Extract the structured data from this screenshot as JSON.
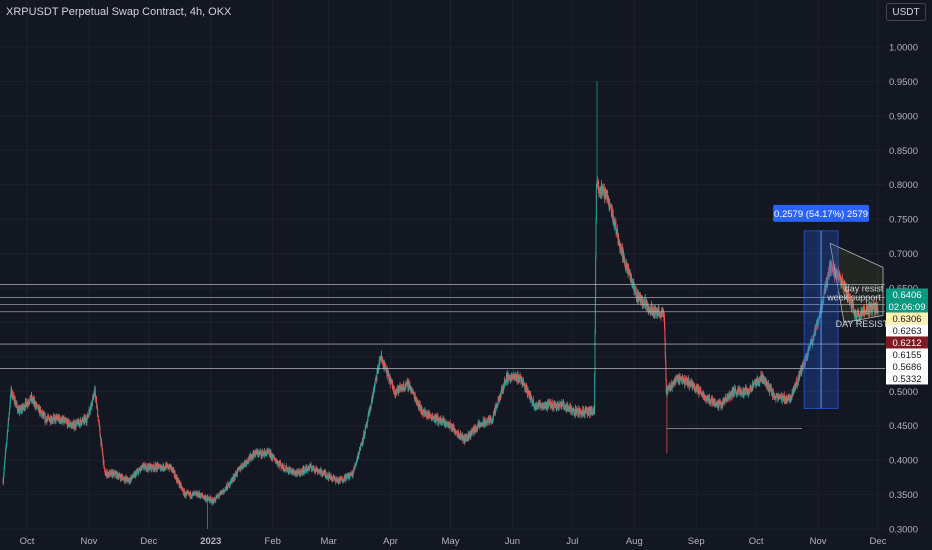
{
  "header": {
    "title": "XRPUSDT Perpetual Swap Contract, 4h, OKX",
    "currency_label": "USDT"
  },
  "colors": {
    "background": "#131722",
    "up": "#26a69a",
    "down": "#ef5350",
    "grid": "#1e222d",
    "axis_text": "#b2b5be",
    "measure_blue": "#2962ff"
  },
  "chart_data": {
    "type": "candlestick",
    "x_tick_labels": [
      "Oct",
      "Nov",
      "Dec",
      "2023",
      "Feb",
      "Mar",
      "Apr",
      "May",
      "Jun",
      "Jul",
      "Aug",
      "Sep",
      "Oct",
      "Nov",
      "Dec"
    ],
    "y_ticks": [
      1.0,
      0.95,
      0.9,
      0.85,
      0.8,
      0.75,
      0.7,
      0.65,
      0.6,
      0.55,
      0.5,
      0.45,
      0.4,
      0.35,
      0.3
    ],
    "y_tick_labels": [
      "1.0000",
      "0.9500",
      "0.9000",
      "0.8500",
      "0.8000",
      "0.7500",
      "0.7000",
      "0.6500",
      "0.6000",
      "0.5500",
      "0.5000",
      "0.4500",
      "0.4000",
      "0.3500",
      "0.3000"
    ],
    "ylim": [
      0.3,
      1.05
    ],
    "price_path": [
      [
        "2022-09-19",
        0.37
      ],
      [
        "2022-09-23",
        0.5
      ],
      [
        "2022-09-27",
        0.47
      ],
      [
        "2022-10-03",
        0.49
      ],
      [
        "2022-10-10",
        0.46
      ],
      [
        "2022-10-17",
        0.46
      ],
      [
        "2022-10-24",
        0.45
      ],
      [
        "2022-10-31",
        0.46
      ],
      [
        "2022-11-04",
        0.5
      ],
      [
        "2022-11-09",
        0.38
      ],
      [
        "2022-11-14",
        0.38
      ],
      [
        "2022-11-21",
        0.37
      ],
      [
        "2022-11-28",
        0.39
      ],
      [
        "2022-12-05",
        0.39
      ],
      [
        "2022-12-12",
        0.39
      ],
      [
        "2022-12-19",
        0.35
      ],
      [
        "2022-12-26",
        0.35
      ],
      [
        "2023-01-02",
        0.34
      ],
      [
        "2023-01-09",
        0.36
      ],
      [
        "2023-01-16",
        0.39
      ],
      [
        "2023-01-23",
        0.41
      ],
      [
        "2023-01-30",
        0.41
      ],
      [
        "2023-02-06",
        0.39
      ],
      [
        "2023-02-13",
        0.38
      ],
      [
        "2023-02-20",
        0.39
      ],
      [
        "2023-02-27",
        0.38
      ],
      [
        "2023-03-06",
        0.37
      ],
      [
        "2023-03-13",
        0.38
      ],
      [
        "2023-03-20",
        0.45
      ],
      [
        "2023-03-27",
        0.55
      ],
      [
        "2023-04-03",
        0.5
      ],
      [
        "2023-04-10",
        0.51
      ],
      [
        "2023-04-17",
        0.47
      ],
      [
        "2023-04-24",
        0.46
      ],
      [
        "2023-05-01",
        0.45
      ],
      [
        "2023-05-08",
        0.43
      ],
      [
        "2023-05-15",
        0.45
      ],
      [
        "2023-05-22",
        0.46
      ],
      [
        "2023-05-29",
        0.52
      ],
      [
        "2023-06-05",
        0.52
      ],
      [
        "2023-06-12",
        0.48
      ],
      [
        "2023-06-19",
        0.48
      ],
      [
        "2023-06-26",
        0.48
      ],
      [
        "2023-07-03",
        0.47
      ],
      [
        "2023-07-12",
        0.47
      ],
      [
        "2023-07-13",
        0.8
      ],
      [
        "2023-07-19",
        0.78
      ],
      [
        "2023-07-26",
        0.7
      ],
      [
        "2023-08-02",
        0.64
      ],
      [
        "2023-08-09",
        0.62
      ],
      [
        "2023-08-16",
        0.61
      ],
      [
        "2023-08-17",
        0.5
      ],
      [
        "2023-08-23",
        0.52
      ],
      [
        "2023-08-30",
        0.51
      ],
      [
        "2023-09-06",
        0.49
      ],
      [
        "2023-09-13",
        0.48
      ],
      [
        "2023-09-20",
        0.5
      ],
      [
        "2023-09-27",
        0.5
      ],
      [
        "2023-10-04",
        0.52
      ],
      [
        "2023-10-11",
        0.49
      ],
      [
        "2023-10-18",
        0.49
      ],
      [
        "2023-10-25",
        0.54
      ],
      [
        "2023-11-01",
        0.6
      ],
      [
        "2023-11-07",
        0.68
      ],
      [
        "2023-11-13",
        0.66
      ],
      [
        "2023-11-20",
        0.61
      ],
      [
        "2023-11-27",
        0.62
      ],
      [
        "2023-12-01",
        0.62
      ]
    ],
    "wick_extremes": [
      {
        "date": "2023-07-13",
        "high": 0.95
      },
      {
        "date": "2023-08-17",
        "low": 0.41
      },
      {
        "date": "2022-12-30",
        "low": 0.3
      }
    ],
    "horizontal_levels": [
      0.655,
      0.636,
      0.626,
      0.6155,
      0.5686,
      0.5332
    ],
    "support_segment": {
      "value": 0.446,
      "from": "2023-08-17",
      "to": "2023-10-24"
    },
    "measure_box": {
      "from": "2023-10-25",
      "to": "2023-11-11",
      "low": 0.475,
      "high": 0.733
    },
    "measure_label": "0.2579 (54.17%) 2579",
    "price_labels": [
      {
        "text": "0.6406",
        "value": 0.6406,
        "bg": "#089981",
        "fg": "#ffffff"
      },
      {
        "text": "02:06:09",
        "value": 0.6406,
        "bg": "#089981",
        "fg": "#ffffff",
        "countdown": true
      },
      {
        "text": "0.6306",
        "value": 0.6306,
        "bg": "#fff2b3",
        "fg": "#131722"
      },
      {
        "text": "0.6263",
        "value": 0.6263,
        "bg": "#ffffff",
        "fg": "#131722"
      },
      {
        "text": "0.6212",
        "value": 0.6212,
        "bg": "#801922",
        "fg": "#ffffff"
      },
      {
        "text": "0.6155",
        "value": 0.6155,
        "bg": "#ffffff",
        "fg": "#131722"
      },
      {
        "text": "0.5686",
        "value": 0.5686,
        "bg": "#ffffff",
        "fg": "#131722"
      },
      {
        "text": "0.5332",
        "value": 0.5332,
        "bg": "#ffffff",
        "fg": "#131722"
      }
    ],
    "annotations": [
      {
        "text": "day resist",
        "date": "2023-11-24",
        "value": 0.645
      },
      {
        "text": "week support",
        "date": "2023-11-19",
        "value": 0.632
      },
      {
        "text": "DAY RESIST",
        "date": "2023-11-23",
        "value": 0.593
      }
    ]
  }
}
